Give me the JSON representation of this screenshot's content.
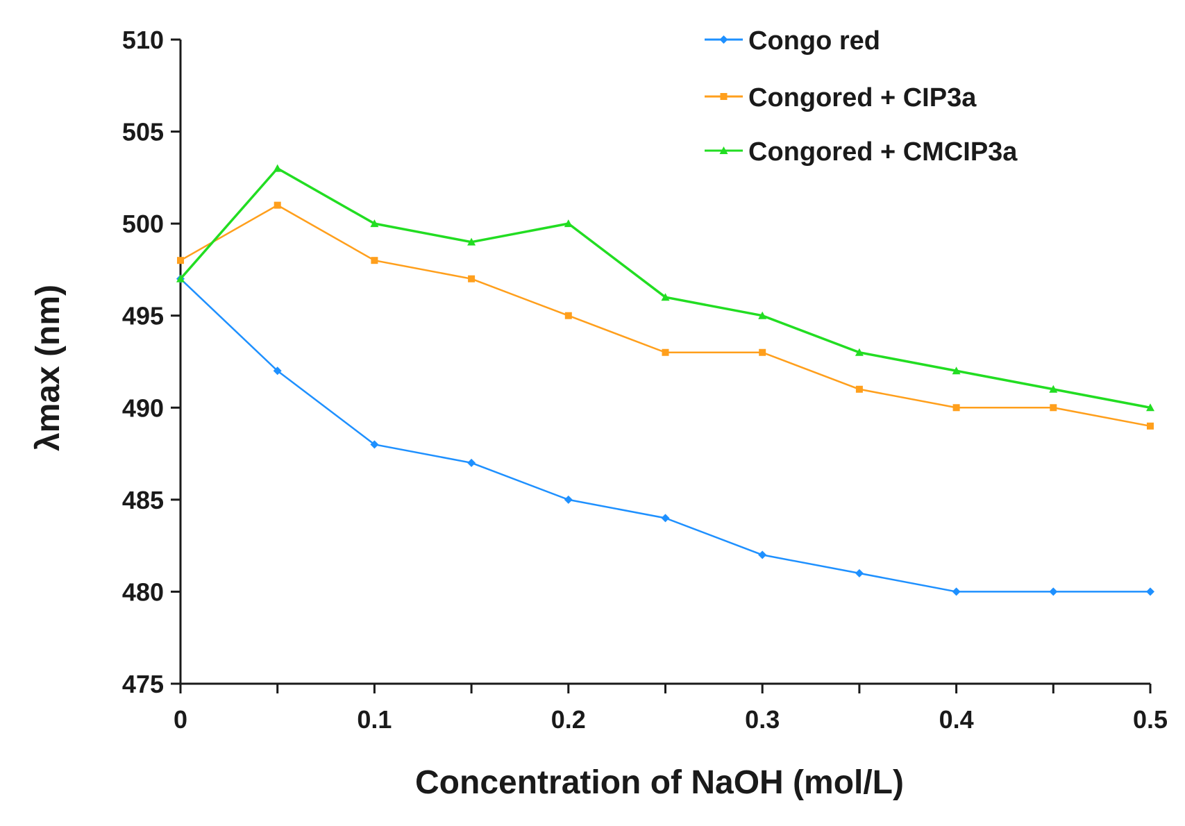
{
  "chart_data": {
    "type": "line",
    "title": "",
    "xlabel": "Concentration of NaOH (mol/L)",
    "ylabel": "λmax (nm)",
    "xlim": [
      0,
      0.5
    ],
    "ylim": [
      475,
      510
    ],
    "x": [
      0,
      0.05,
      0.1,
      0.15,
      0.2,
      0.25,
      0.3,
      0.35,
      0.4,
      0.45,
      0.5
    ],
    "x_ticks": [
      0,
      0.1,
      0.2,
      0.3,
      0.4,
      0.5
    ],
    "x_tick_labels": [
      "0",
      "0.1",
      "0.2",
      "0.3",
      "0.4",
      "0.5"
    ],
    "y_ticks": [
      475,
      480,
      485,
      490,
      495,
      500,
      505,
      510
    ],
    "y_tick_labels": [
      "475",
      "480",
      "485",
      "490",
      "495",
      "500",
      "505",
      "510"
    ],
    "grid": false,
    "legend_position": "top-right",
    "series": [
      {
        "name": "Congo red",
        "color": "#1E90FF",
        "marker": "diamond",
        "values": [
          497,
          492,
          488,
          487,
          485,
          484,
          482,
          481,
          480,
          480,
          480
        ]
      },
      {
        "name": "Congored + CIP3a",
        "color": "#FF9F1C",
        "marker": "square",
        "values": [
          498,
          501,
          498,
          497,
          495,
          493,
          493,
          491,
          490,
          490,
          489
        ]
      },
      {
        "name": "Congored + CMCIP3a",
        "color": "#22DD22",
        "marker": "triangle",
        "values": [
          497,
          503,
          500,
          499,
          500,
          496,
          495,
          493,
          492,
          491,
          490
        ]
      }
    ]
  }
}
